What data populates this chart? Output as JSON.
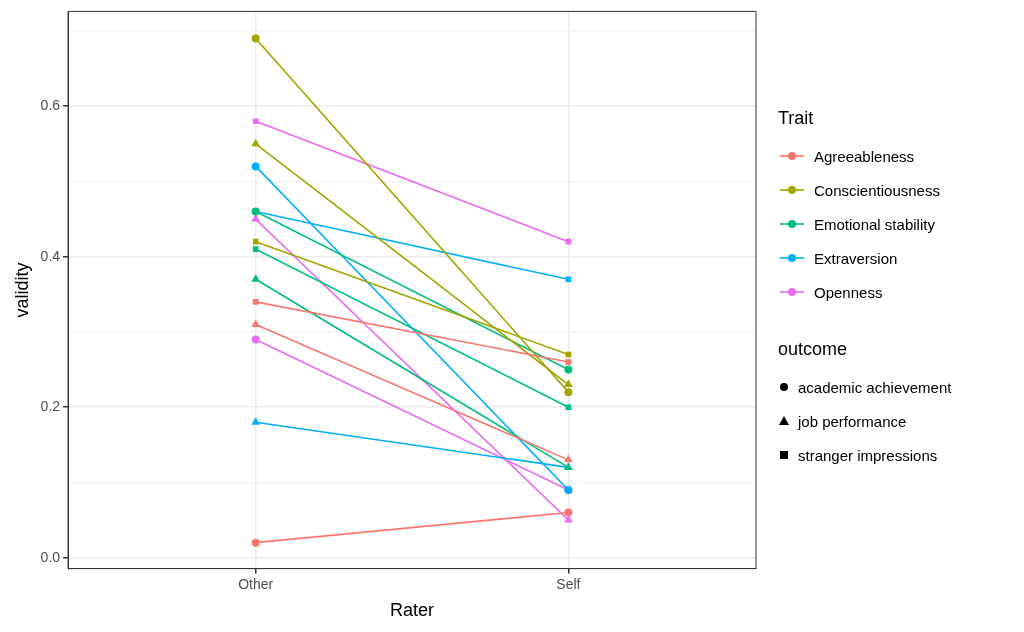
{
  "chart_data": {
    "type": "line",
    "xlabel": "Rater",
    "ylabel": "validity",
    "categories": [
      "Other",
      "Self"
    ],
    "ylim": [
      -0.0145,
      0.726
    ],
    "yticks": [
      {
        "value": 0,
        "label": "0.0"
      },
      {
        "value": 0.1,
        "label": null
      },
      0.2,
      {
        "value": 0.3,
        "label": null
      },
      0.4,
      {
        "value": 0.5,
        "label": null
      },
      0.6,
      {
        "value": 0.7,
        "label": null
      }
    ],
    "grid": true,
    "legend": "right",
    "legend_title": "Trait",
    "annotations": [
      "outcome",
      "academic achievement",
      "job performance",
      "stranger impressions"
    ],
    "series": [
      {
        "name": "Agreeableness",
        "color": "#f8766d",
        "marker": "circle",
        "values": [
          0.02,
          0.06
        ]
      },
      {
        "color": "#f8766d",
        "marker": "triangle",
        "values": [
          0.31,
          0.13
        ]
      },
      {
        "color": "#f8766d",
        "marker": "square",
        "values": [
          0.34,
          0.26
        ]
      },
      {
        "name": "Conscientiousness",
        "color": "#a3a500",
        "marker": "circle",
        "values": [
          0.69,
          0.22
        ]
      },
      {
        "color": "#a3a500",
        "marker": "triangle",
        "values": [
          0.55,
          0.23
        ]
      },
      {
        "color": "#a3a500",
        "marker": "square",
        "values": [
          0.42,
          0.27
        ]
      },
      {
        "name": "Emotional stability",
        "color": "#00bf7d",
        "marker": "circle",
        "values": [
          0.46,
          0.25
        ]
      },
      {
        "color": "#00bf7d",
        "marker": "triangle",
        "values": [
          0.37,
          0.12
        ]
      },
      {
        "color": "#00bf7d",
        "marker": "square",
        "values": [
          0.41,
          0.2
        ]
      },
      {
        "name": "Extraversion",
        "color": "#00b0f6",
        "marker": "circle",
        "values": [
          0.52,
          0.09
        ]
      },
      {
        "color": "#00b0f6",
        "marker": "triangle",
        "values": [
          0.18,
          0.12
        ]
      },
      {
        "color": "#00b0f6",
        "marker": "square",
        "values": [
          0.46,
          0.37
        ]
      },
      {
        "name": "Openness",
        "color": "#e76bf3",
        "marker": "circle",
        "values": [
          0.29,
          0.09
        ]
      },
      {
        "color": "#e76bf3",
        "marker": "triangle",
        "values": [
          0.45,
          0.05
        ]
      },
      {
        "color": "#e76bf3",
        "marker": "square",
        "values": [
          0.58,
          0.42
        ]
      }
    ]
  }
}
